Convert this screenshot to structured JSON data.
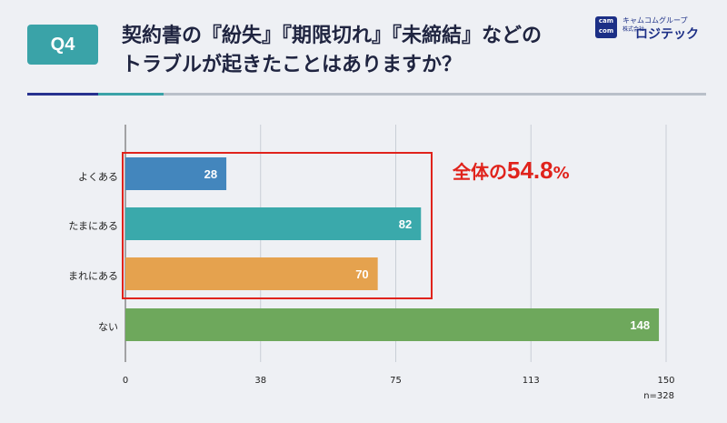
{
  "header": {
    "badge": "Q4",
    "title_line1": "契約書の『紛失』『期限切れ』『未締結』などの",
    "title_line2": "トラブルが起きたことはありますか？"
  },
  "logo": {
    "mark_top": "cam",
    "mark_bottom": "com",
    "group": "キャムコムグループ",
    "company_small": "株式会社",
    "company": "ロジテック"
  },
  "callout": {
    "label": "全体の",
    "value": "54.8",
    "unit": "%"
  },
  "sample": "n=328",
  "colors": {
    "yoku": "#4386bd",
    "tama": "#3aa9ab",
    "mare": "#e5a24e",
    "nai": "#6ea85c",
    "accent_red": "#e0231c"
  },
  "chart_data": {
    "type": "bar",
    "orientation": "horizontal",
    "categories": [
      "よくある",
      "たまにある",
      "まれにある",
      "ない"
    ],
    "values": [
      28,
      82,
      70,
      148
    ],
    "xlim": [
      0,
      150
    ],
    "xticks": [
      "0",
      "38",
      "75",
      "113",
      "150"
    ],
    "grid": true
  }
}
